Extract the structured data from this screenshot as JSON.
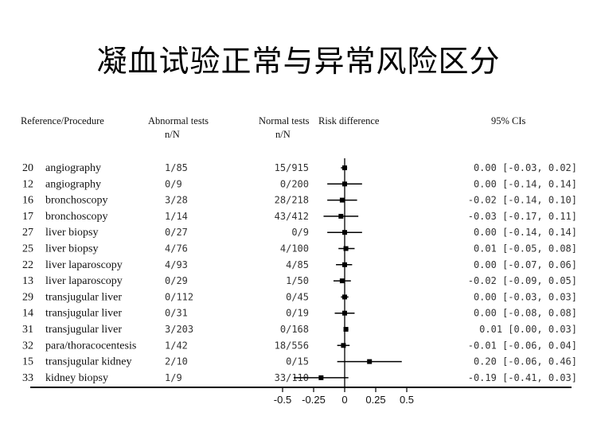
{
  "title": "凝血试验正常与异常风险区分",
  "chart_data": {
    "type": "forest",
    "columns": {
      "reference_procedure": "Reference/Procedure",
      "abnormal": "Abnormal tests",
      "abnormal_sub": "n/N",
      "normal": "Normal tests",
      "normal_sub": "n/N",
      "risk": "Risk difference",
      "ci": "95% CIs"
    },
    "xlim": [
      -0.5,
      0.5
    ],
    "xticks": [
      "-0.5",
      "-0.25",
      "0",
      "0.25",
      "0.5"
    ],
    "xtick_values": [
      -0.5,
      -0.25,
      0,
      0.25,
      0.5
    ],
    "rows": [
      {
        "ref": "20",
        "procedure": "angiography",
        "abnormal": "1/85",
        "normal": "15/915",
        "rd": 0.0,
        "lo": -0.03,
        "hi": 0.02,
        "ci_text": "0.00 [-0.03, 0.02]"
      },
      {
        "ref": "12",
        "procedure": "angiography",
        "abnormal": "0/9",
        "normal": "0/200",
        "rd": 0.0,
        "lo": -0.14,
        "hi": 0.14,
        "ci_text": "0.00 [-0.14, 0.14]"
      },
      {
        "ref": "16",
        "procedure": "bronchoscopy",
        "abnormal": "3/28",
        "normal": "28/218",
        "rd": -0.02,
        "lo": -0.14,
        "hi": 0.1,
        "ci_text": "-0.02 [-0.14, 0.10]"
      },
      {
        "ref": "17",
        "procedure": "bronchoscopy",
        "abnormal": "1/14",
        "normal": "43/412",
        "rd": -0.03,
        "lo": -0.17,
        "hi": 0.11,
        "ci_text": "-0.03 [-0.17, 0.11]"
      },
      {
        "ref": "27",
        "procedure": "liver biopsy",
        "abnormal": "0/27",
        "normal": "0/9",
        "rd": 0.0,
        "lo": -0.14,
        "hi": 0.14,
        "ci_text": "0.00 [-0.14, 0.14]"
      },
      {
        "ref": "25",
        "procedure": "liver biopsy",
        "abnormal": "4/76",
        "normal": "4/100",
        "rd": 0.01,
        "lo": -0.05,
        "hi": 0.08,
        "ci_text": "0.01 [-0.05, 0.08]"
      },
      {
        "ref": "22",
        "procedure": "liver laparoscopy",
        "abnormal": "4/93",
        "normal": "4/85",
        "rd": 0.0,
        "lo": -0.07,
        "hi": 0.06,
        "ci_text": "0.00 [-0.07, 0.06]"
      },
      {
        "ref": "13",
        "procedure": "liver laparoscopy",
        "abnormal": "0/29",
        "normal": "1/50",
        "rd": -0.02,
        "lo": -0.09,
        "hi": 0.05,
        "ci_text": "-0.02 [-0.09, 0.05]"
      },
      {
        "ref": "29",
        "procedure": "transjugular liver",
        "abnormal": "0/112",
        "normal": "0/45",
        "rd": 0.0,
        "lo": -0.03,
        "hi": 0.03,
        "ci_text": "0.00 [-0.03, 0.03]"
      },
      {
        "ref": "14",
        "procedure": "transjugular liver",
        "abnormal": "0/31",
        "normal": "0/19",
        "rd": 0.0,
        "lo": -0.08,
        "hi": 0.08,
        "ci_text": "0.00 [-0.08, 0.08]"
      },
      {
        "ref": "31",
        "procedure": "transjugular liver",
        "abnormal": "3/203",
        "normal": "0/168",
        "rd": 0.01,
        "lo": 0.0,
        "hi": 0.03,
        "ci_text": "0.01 [0.00, 0.03]"
      },
      {
        "ref": "32",
        "procedure": "para/thoracocentesis",
        "abnormal": "1/42",
        "normal": "18/556",
        "rd": -0.01,
        "lo": -0.06,
        "hi": 0.04,
        "ci_text": "-0.01 [-0.06, 0.04]"
      },
      {
        "ref": "15",
        "procedure": "transjugular kidney",
        "abnormal": "2/10",
        "normal": "0/15",
        "rd": 0.2,
        "lo": -0.06,
        "hi": 0.46,
        "ci_text": "0.20 [-0.06, 0.46]"
      },
      {
        "ref": "33",
        "procedure": "kidney biopsy",
        "abnormal": "1/9",
        "normal": "33/110",
        "rd": -0.19,
        "lo": -0.41,
        "hi": 0.03,
        "ci_text": "-0.19 [-0.41, 0.03]"
      }
    ]
  }
}
